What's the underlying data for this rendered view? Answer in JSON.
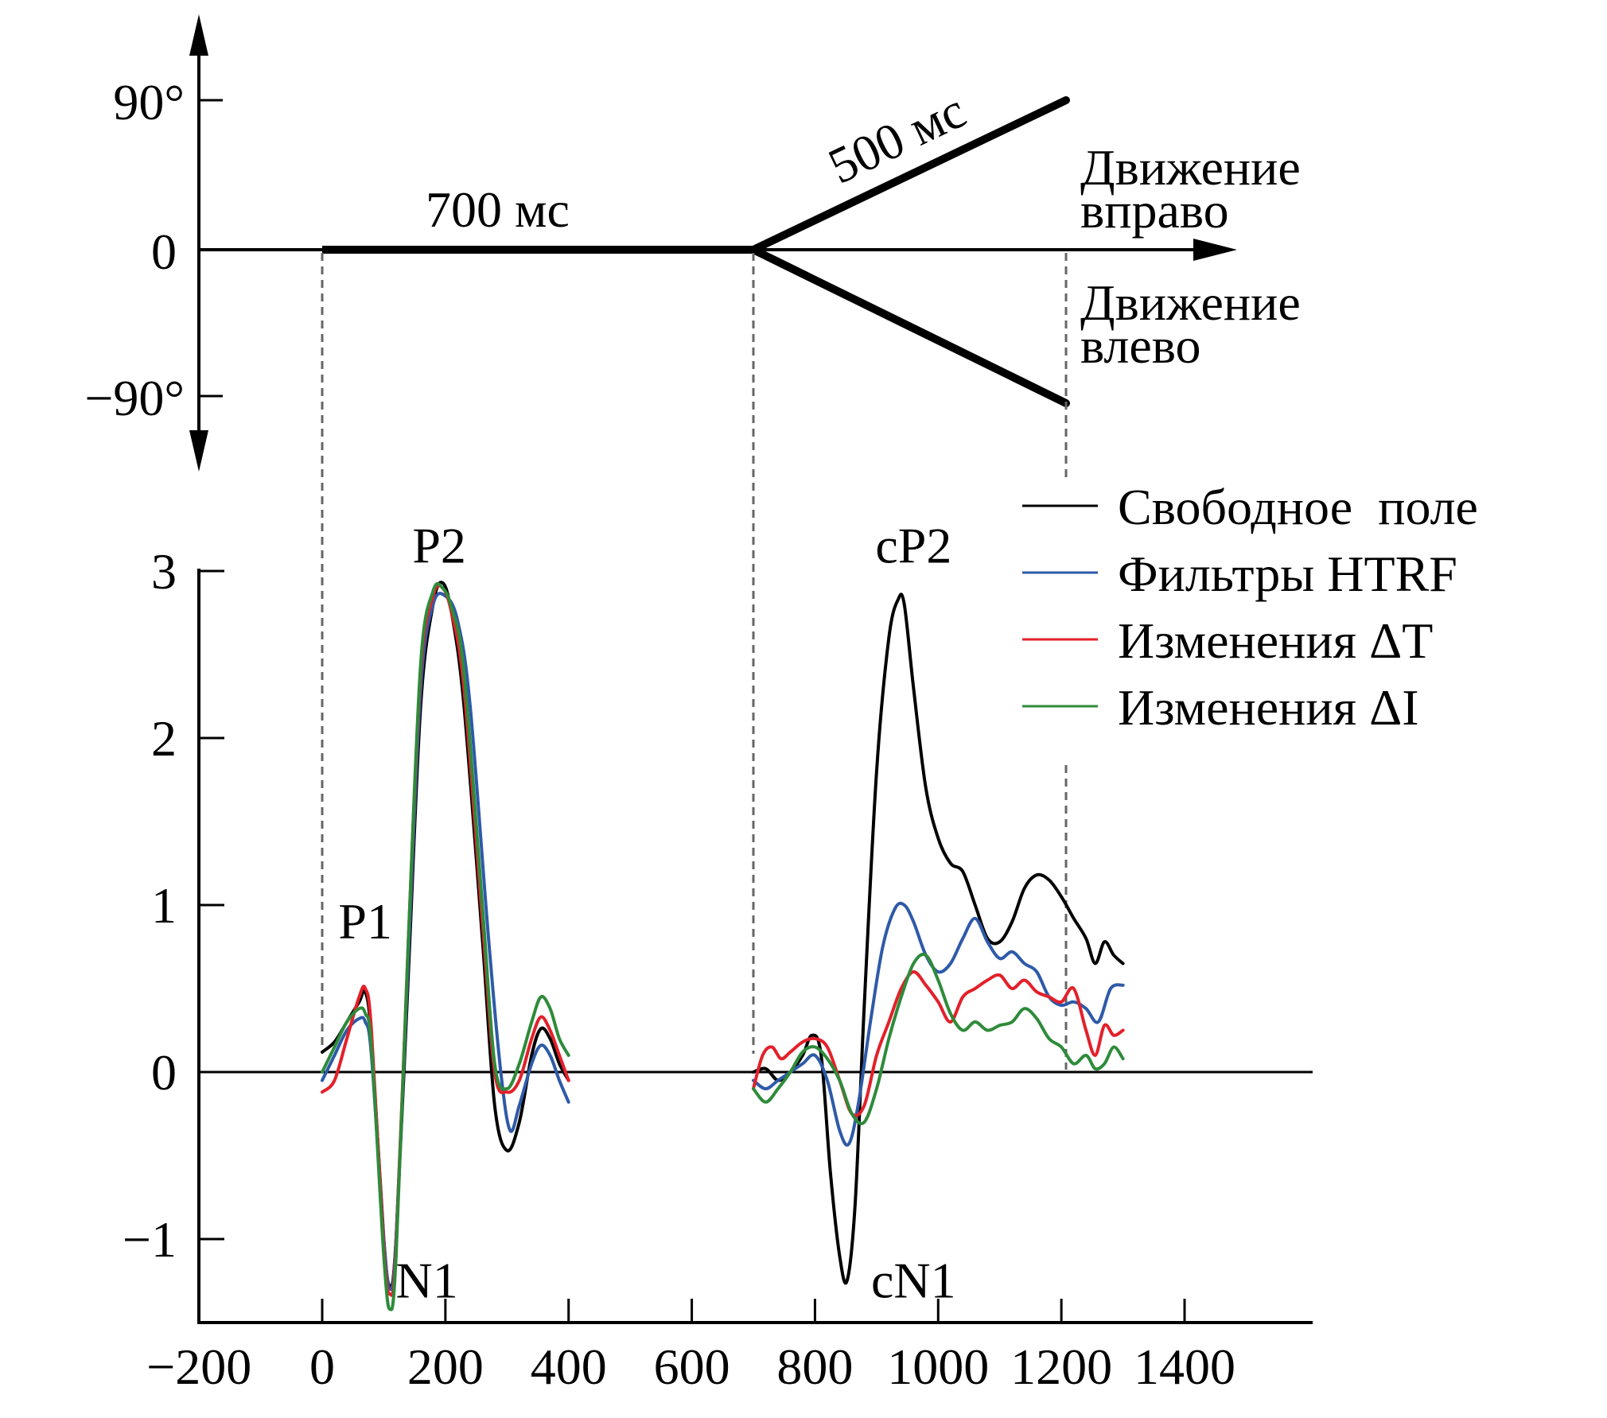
{
  "chart_data": [
    {
      "type": "line",
      "panel": "stimulus",
      "y_unit": "degrees",
      "yticks": [
        "90°",
        "0",
        "−90°"
      ],
      "segments": [
        {
          "x": [
            0,
            700
          ],
          "y": [
            0,
            0
          ]
        },
        {
          "x": [
            700,
            1200
          ],
          "y": [
            0,
            90
          ]
        },
        {
          "x": [
            700,
            1200
          ],
          "y": [
            0,
            -90
          ]
        }
      ],
      "annotations": {
        "stationary": "700 мс",
        "motion": "500 мс",
        "right_line1": "Движение",
        "right_line2": "вправо",
        "left_line1": "Движение",
        "left_line2": "влево"
      }
    },
    {
      "type": "line",
      "panel": "erp",
      "xlim": [
        -200,
        1600
      ],
      "ylim": [
        -1.5,
        3.0
      ],
      "xticks": [
        -200,
        0,
        200,
        400,
        600,
        800,
        1000,
        1200,
        1400
      ],
      "xtick_labels": [
        "−200",
        "0",
        "200",
        "400",
        "600",
        "800",
        "1000",
        "1200",
        "1400"
      ],
      "yticks": [
        -1,
        0,
        1,
        2,
        3
      ],
      "ytick_labels": [
        "−1",
        "0",
        "1",
        "2",
        "3"
      ],
      "legend_position": "top-right",
      "peak_labels": [
        {
          "text": "P1",
          "x": 70,
          "y": 0.8
        },
        {
          "text": "P2",
          "x": 190,
          "y": 3.05
        },
        {
          "text": "N1",
          "x": 170,
          "y": -1.35
        },
        {
          "text": "cP2",
          "x": 960,
          "y": 3.05
        },
        {
          "text": "cN1",
          "x": 960,
          "y": -1.35
        }
      ],
      "series": [
        {
          "name": "Свободное  поле",
          "color": "#000000",
          "segments": [
            {
              "x": [
                0,
                20,
                40,
                60,
                70,
                80,
                100,
                110,
                120,
                140,
                160,
                180,
                195,
                210,
                230,
                260,
                280,
                300,
                320,
                340,
                355,
                370,
                385,
                400
              ],
              "y": [
                0.12,
                0.18,
                0.3,
                0.42,
                0.48,
                0.2,
                -1.0,
                -1.28,
                -1.0,
                0.6,
                2.2,
                2.8,
                2.93,
                2.75,
                2.2,
                0.8,
                -0.2,
                -0.47,
                -0.3,
                0.1,
                0.26,
                0.2,
                0.05,
                -0.05
              ]
            },
            {
              "x": [
                700,
                720,
                740,
                760,
                780,
                795,
                810,
                825,
                840,
                852,
                865,
                880,
                900,
                920,
                935,
                945,
                960,
                980,
                1000,
                1020,
                1040,
                1060,
                1080,
                1100,
                1120,
                1140,
                1160,
                1180,
                1200,
                1220,
                1240,
                1255,
                1270,
                1285,
                1300
              ],
              "y": [
                0.0,
                0.02,
                -0.05,
                0.0,
                0.1,
                0.22,
                0.1,
                -0.6,
                -1.1,
                -1.25,
                -0.8,
                0.4,
                1.8,
                2.6,
                2.83,
                2.8,
                2.3,
                1.7,
                1.4,
                1.25,
                1.2,
                1.0,
                0.8,
                0.78,
                0.9,
                1.1,
                1.18,
                1.15,
                1.05,
                0.92,
                0.8,
                0.65,
                0.78,
                0.7,
                0.65
              ]
            }
          ]
        },
        {
          "name": "Фильтры HTRF",
          "color": "#2e5aa8",
          "segments": [
            {
              "x": [
                0,
                20,
                40,
                60,
                70,
                80,
                100,
                110,
                120,
                140,
                160,
                180,
                200,
                220,
                240,
                270,
                290,
                305,
                320,
                340,
                355,
                370,
                385,
                400
              ],
              "y": [
                -0.05,
                0.1,
                0.25,
                0.32,
                0.3,
                0.1,
                -1.0,
                -1.3,
                -1.0,
                0.7,
                2.3,
                2.8,
                2.85,
                2.7,
                2.2,
                0.8,
                0.0,
                -0.35,
                -0.2,
                0.05,
                0.16,
                0.1,
                -0.05,
                -0.18
              ]
            },
            {
              "x": [
                700,
                720,
                740,
                760,
                780,
                800,
                820,
                840,
                855,
                870,
                890,
                910,
                930,
                945,
                960,
                980,
                1000,
                1020,
                1040,
                1060,
                1080,
                1100,
                1120,
                1140,
                1160,
                1180,
                1200,
                1220,
                1240,
                1260,
                1280,
                1300
              ],
              "y": [
                -0.05,
                -0.1,
                -0.05,
                0.0,
                0.05,
                0.1,
                -0.05,
                -0.35,
                -0.43,
                -0.2,
                0.3,
                0.75,
                0.98,
                1.0,
                0.9,
                0.7,
                0.6,
                0.65,
                0.8,
                0.92,
                0.78,
                0.68,
                0.72,
                0.65,
                0.6,
                0.45,
                0.4,
                0.42,
                0.38,
                0.3,
                0.5,
                0.52
              ]
            }
          ]
        },
        {
          "name": "Изменения ΔT",
          "color": "#e3202a",
          "segments": [
            {
              "x": [
                0,
                20,
                40,
                60,
                70,
                80,
                100,
                110,
                120,
                140,
                160,
                180,
                195,
                210,
                230,
                260,
                280,
                300,
                320,
                340,
                355,
                370,
                385,
                400
              ],
              "y": [
                -0.12,
                -0.05,
                0.2,
                0.45,
                0.5,
                0.25,
                -1.05,
                -1.33,
                -1.05,
                0.8,
                2.4,
                2.85,
                2.9,
                2.75,
                2.3,
                0.9,
                0.0,
                -0.12,
                -0.05,
                0.2,
                0.33,
                0.25,
                0.1,
                -0.05
              ]
            },
            {
              "x": [
                700,
                715,
                730,
                745,
                760,
                780,
                800,
                820,
                840,
                860,
                880,
                900,
                920,
                940,
                960,
                980,
                1000,
                1020,
                1040,
                1060,
                1080,
                1100,
                1120,
                1140,
                1160,
                1180,
                1200,
                1220,
                1240,
                1255,
                1270,
                1285,
                1300
              ],
              "y": [
                -0.1,
                0.1,
                0.15,
                0.08,
                0.12,
                0.18,
                0.2,
                0.15,
                -0.05,
                -0.25,
                -0.2,
                0.1,
                0.3,
                0.5,
                0.6,
                0.52,
                0.42,
                0.3,
                0.45,
                0.5,
                0.55,
                0.58,
                0.5,
                0.55,
                0.48,
                0.45,
                0.42,
                0.5,
                0.25,
                0.1,
                0.28,
                0.22,
                0.25
              ]
            }
          ]
        },
        {
          "name": "Изменения ΔI",
          "color": "#2e8b3a",
          "segments": [
            {
              "x": [
                0,
                20,
                40,
                60,
                70,
                80,
                100,
                110,
                120,
                140,
                160,
                180,
                195,
                210,
                230,
                260,
                280,
                300,
                320,
                340,
                355,
                370,
                385,
                400
              ],
              "y": [
                0.0,
                0.15,
                0.3,
                0.38,
                0.35,
                0.15,
                -1.1,
                -1.42,
                -1.1,
                0.8,
                2.45,
                2.88,
                2.9,
                2.78,
                2.4,
                1.0,
                0.05,
                -0.1,
                0.05,
                0.3,
                0.45,
                0.38,
                0.2,
                0.1
              ]
            },
            {
              "x": [
                700,
                720,
                740,
                760,
                780,
                800,
                820,
                840,
                860,
                880,
                900,
                920,
                940,
                960,
                980,
                1000,
                1020,
                1040,
                1060,
                1080,
                1100,
                1120,
                1140,
                1160,
                1180,
                1200,
                1220,
                1240,
                1255,
                1270,
                1285,
                1300
              ],
              "y": [
                -0.1,
                -0.18,
                -0.1,
                0.0,
                0.12,
                0.15,
                0.08,
                -0.05,
                -0.25,
                -0.3,
                -0.1,
                0.2,
                0.45,
                0.65,
                0.7,
                0.55,
                0.35,
                0.25,
                0.3,
                0.25,
                0.28,
                0.3,
                0.38,
                0.32,
                0.2,
                0.15,
                0.05,
                0.1,
                0.02,
                0.05,
                0.15,
                0.08
              ]
            }
          ]
        }
      ]
    }
  ]
}
